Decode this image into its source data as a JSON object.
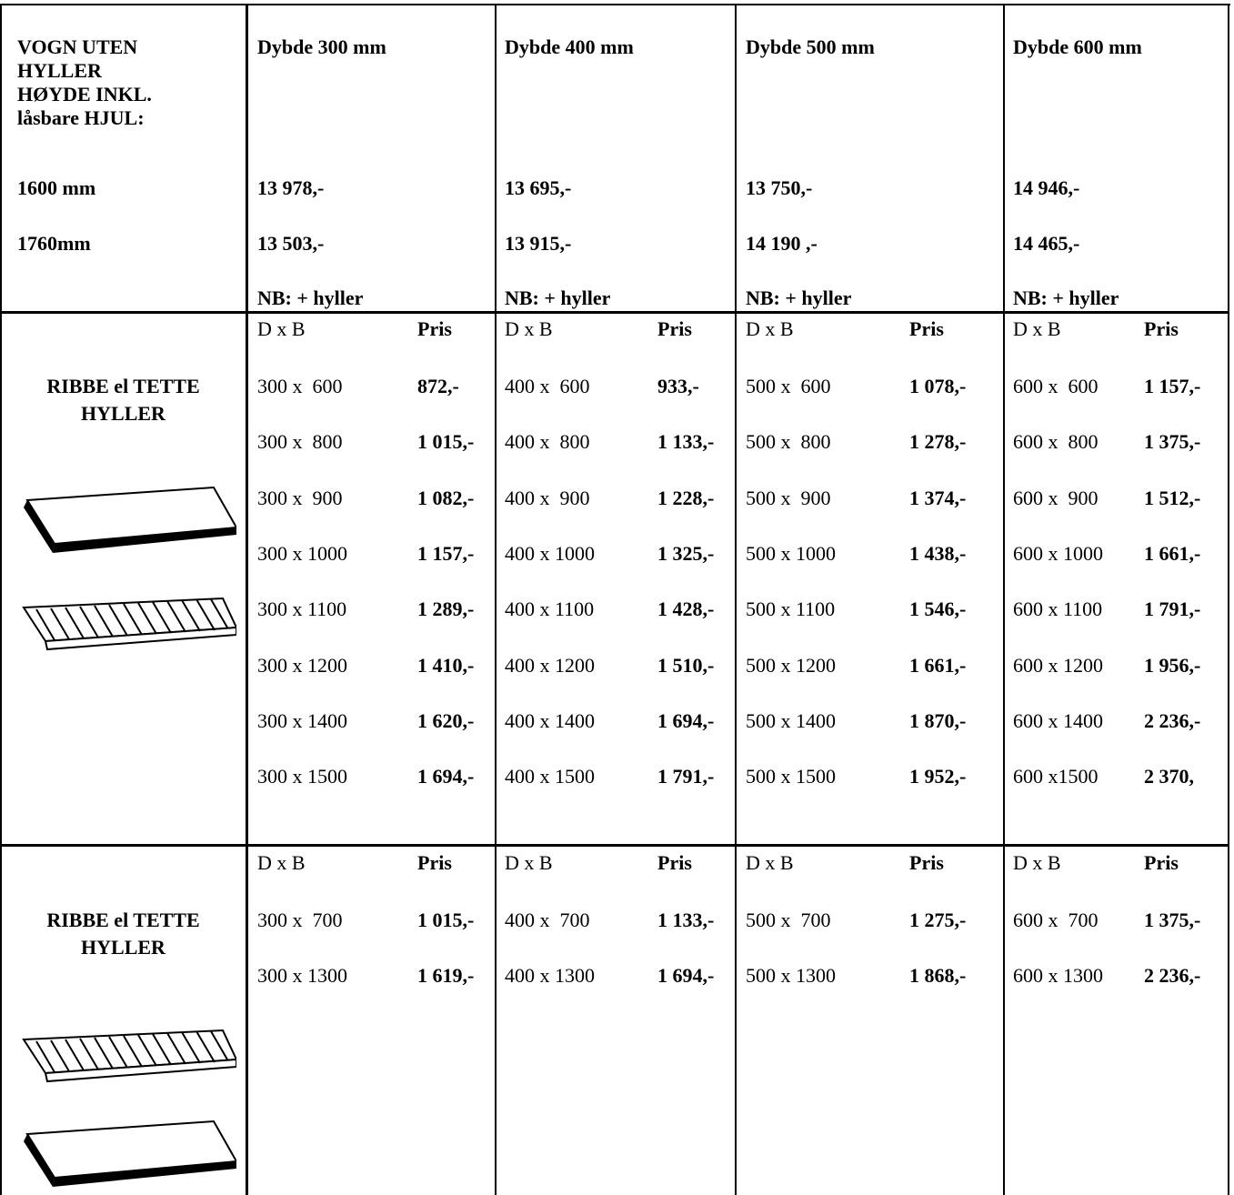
{
  "top": {
    "label_lines": [
      "VOGN UTEN",
      "HYLLER",
      "HØYDE INKL.",
      "låsbare HJUL:"
    ],
    "heights": [
      "1600 mm",
      "1760mm"
    ],
    "columns": [
      {
        "title": "Dybde 300 mm",
        "prices": [
          "13 978,-",
          "13 503,-"
        ],
        "note": "NB: + hyller"
      },
      {
        "title": "Dybde 400 mm",
        "prices": [
          "13 695,-",
          "13 915,-"
        ],
        "note": "NB: + hyller"
      },
      {
        "title": "Dybde 500 mm",
        "prices": [
          "13 750,-",
          "14 190 ,-"
        ],
        "note": "NB: + hyller"
      },
      {
        "title": "Dybde 600 mm",
        "prices": [
          "14 946,-",
          "14 465,-"
        ],
        "note": "NB: + hyller"
      }
    ]
  },
  "sections": [
    {
      "label_lines": [
        "RIBBE el TETTE",
        "HYLLER"
      ],
      "columns": [
        {
          "size_header": "D x B",
          "price_header": "Pris",
          "rows": [
            [
              "300 x  600",
              "872,-"
            ],
            [
              "300 x  800",
              "1 015,-"
            ],
            [
              "300 x  900",
              "1 082,-"
            ],
            [
              "300 x 1000",
              "1 157,-"
            ],
            [
              "300 x 1100",
              "1 289,-"
            ],
            [
              "300 x 1200",
              "1 410,-"
            ],
            [
              "300 x 1400",
              "1 620,-"
            ],
            [
              "300 x 1500",
              "1 694,-"
            ]
          ]
        },
        {
          "size_header": "D x B",
          "price_header": "Pris",
          "rows": [
            [
              "400 x  600",
              "933,-"
            ],
            [
              "400 x  800",
              "1 133,-"
            ],
            [
              "400 x  900",
              "1 228,-"
            ],
            [
              "400 x 1000",
              "1 325,-"
            ],
            [
              "400 x 1100",
              "1 428,-"
            ],
            [
              "400 x 1200",
              "1 510,-"
            ],
            [
              "400 x 1400",
              "1 694,-"
            ],
            [
              "400 x 1500",
              "1 791,-"
            ]
          ]
        },
        {
          "size_header": "D x B",
          "price_header": "Pris",
          "rows": [
            [
              "500 x  600",
              "1 078,-"
            ],
            [
              "500 x  800",
              "1 278,-"
            ],
            [
              "500 x  900",
              "1 374,-"
            ],
            [
              "500 x 1000",
              "1 438,-"
            ],
            [
              "500 x 1100",
              "1 546,-"
            ],
            [
              "500 x 1200",
              "1 661,-"
            ],
            [
              "500 x 1400",
              "1 870,-"
            ],
            [
              "500 x 1500",
              "1 952,-"
            ]
          ]
        },
        {
          "size_header": "D x B",
          "price_header": "Pris",
          "rows": [
            [
              "600 x  600",
              "1 157,-"
            ],
            [
              "600 x  800",
              "1 375,-"
            ],
            [
              "600 x  900",
              "1 512,-"
            ],
            [
              "600 x 1000",
              "1 661,-"
            ],
            [
              "600 x 1100",
              "1 791,-"
            ],
            [
              "600 x 1200",
              "1 956,-"
            ],
            [
              "600 x 1400",
              "2 236,-"
            ],
            [
              "600 x1500",
              "2 370,"
            ]
          ]
        }
      ]
    },
    {
      "label_lines": [
        "RIBBE el TETTE",
        "HYLLER"
      ],
      "columns": [
        {
          "size_header": "D x B",
          "price_header": "Pris",
          "rows": [
            [
              "300 x  700",
              "1 015,-"
            ],
            [
              "300 x 1300",
              "1 619,-"
            ]
          ]
        },
        {
          "size_header": "D x B",
          "price_header": "Pris",
          "rows": [
            [
              "400 x  700",
              "1 133,-"
            ],
            [
              "400 x 1300",
              "1 694,-"
            ]
          ]
        },
        {
          "size_header": "D x B",
          "price_header": "Pris",
          "rows": [
            [
              "500 x  700",
              "1 275,-"
            ],
            [
              "500 x 1300",
              "1 868,-"
            ]
          ]
        },
        {
          "size_header": "D x B",
          "price_header": "Pris",
          "rows": [
            [
              "600 x  700",
              "1 375,-"
            ],
            [
              "600 x 1300",
              "2 236,-"
            ]
          ]
        }
      ]
    }
  ]
}
